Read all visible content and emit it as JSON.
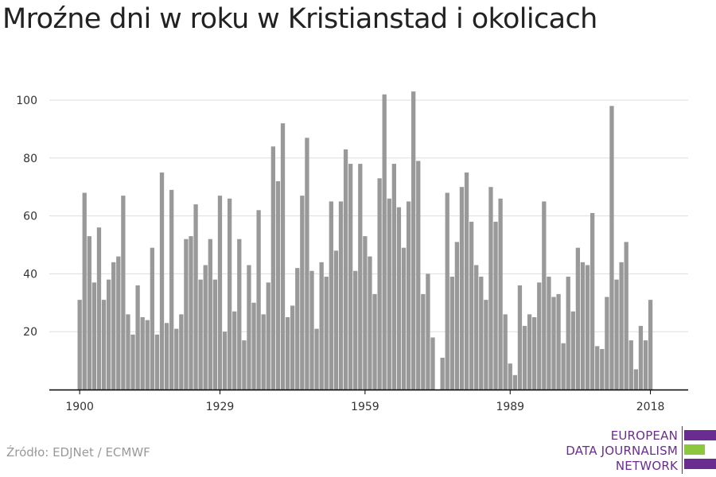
{
  "title": "Mroźne dni w roku w Kristianstad i okolicach",
  "source": "Źródło: EDJNet / ECMWF",
  "logo": {
    "lines": [
      "EUROPEAN",
      "DATA JOURNALISM",
      "NETWORK"
    ],
    "colors": {
      "purple": "#6b2c91",
      "green": "#8dc63f"
    }
  },
  "colors": {
    "bar": "#999999",
    "grid": "#dddddd",
    "axis": "#000000"
  },
  "chart_data": {
    "type": "bar",
    "title": "Mroźne dni w roku w Kristianstad i okolicach",
    "xlabel": "",
    "ylabel": "",
    "ylim": [
      0,
      110
    ],
    "yticks": [
      20,
      40,
      60,
      80,
      100
    ],
    "xticks": [
      "1900",
      "1929",
      "1959",
      "1989",
      "2018"
    ],
    "grid": true,
    "x_start": 1900,
    "values": [
      31,
      68,
      53,
      37,
      56,
      31,
      38,
      44,
      46,
      67,
      26,
      19,
      36,
      25,
      24,
      49,
      19,
      75,
      23,
      69,
      21,
      26,
      52,
      53,
      64,
      38,
      43,
      52,
      38,
      67,
      20,
      66,
      27,
      52,
      17,
      43,
      30,
      62,
      26,
      37,
      84,
      72,
      92,
      25,
      29,
      42,
      67,
      87,
      41,
      21,
      44,
      39,
      65,
      48,
      65,
      83,
      78,
      41,
      78,
      53,
      46,
      33,
      73,
      102,
      66,
      78,
      63,
      49,
      65,
      103,
      79,
      33,
      40,
      18,
      0,
      11,
      68,
      39,
      51,
      70,
      75,
      58,
      43,
      39,
      31,
      70,
      58,
      66,
      26,
      9,
      5,
      36,
      22,
      26,
      25,
      37,
      65,
      39,
      32,
      33,
      16,
      39,
      27,
      49,
      44,
      43,
      61,
      15,
      14,
      32,
      98,
      38,
      44,
      51,
      17,
      7,
      22,
      17,
      31
    ]
  }
}
